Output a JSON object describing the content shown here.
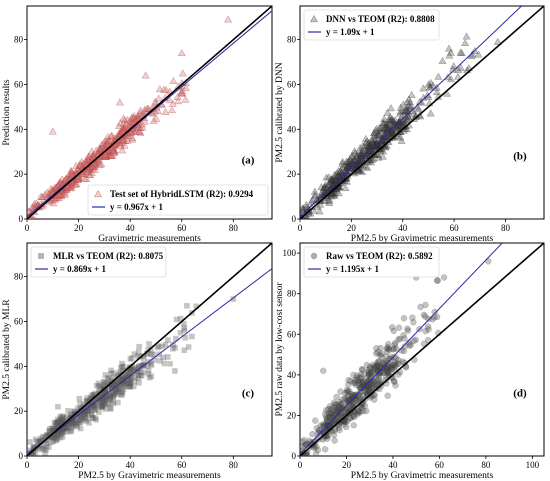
{
  "chart_data": [
    {
      "type": "scatter",
      "panel_label": "(a)",
      "xlabel": "Gravimetric measurements",
      "ylabel": "Prediction results",
      "xlim": [
        0,
        95
      ],
      "ylim": [
        0,
        95
      ],
      "xticks": [
        "0",
        "20",
        "40",
        "60",
        "80"
      ],
      "yticks": [
        "0",
        "20",
        "40",
        "60",
        "80"
      ],
      "legend_position": "bottom-right",
      "marker": "triangle",
      "marker_color": "#c0504d",
      "series": [
        {
          "name": "Test set of HybridLSTM (R2): 0.9294",
          "kind": "points",
          "summary": {
            "slope": 0.967,
            "intercept": 1,
            "x_range": [
              0,
              62
            ],
            "noise": 3.2,
            "count": 520
          }
        },
        {
          "name": "y = 0.967x + 1",
          "kind": "fit",
          "slope": 0.967,
          "intercept": 1,
          "color": "#2a2aa8"
        },
        {
          "name": "",
          "kind": "identity",
          "slope": 1,
          "intercept": 0,
          "color": "#000000"
        }
      ],
      "outliers": [
        [
          78,
          89
        ],
        [
          60,
          74
        ],
        [
          10,
          39
        ],
        [
          46,
          64
        ],
        [
          36,
          52
        ]
      ]
    },
    {
      "type": "scatter",
      "panel_label": "(b)",
      "xlabel": "PM2.5 by Gravimetric measurements",
      "ylabel": "PM2.5 calibrated by DNN",
      "xlim": [
        0,
        95
      ],
      "ylim": [
        0,
        95
      ],
      "xticks": [
        "0",
        "20",
        "40",
        "60",
        "80"
      ],
      "yticks": [
        "0",
        "20",
        "40",
        "60",
        "80"
      ],
      "legend_position": "top-left",
      "marker": "triangle",
      "marker_color": "#555555",
      "series": [
        {
          "name": "DNN vs TEOM (R2): 0.8808",
          "kind": "points",
          "summary": {
            "slope": 1.09,
            "intercept": 1,
            "x_range": [
              0,
              70
            ],
            "noise": 4.5,
            "count": 520
          }
        },
        {
          "name": "y = 1.09x + 1",
          "kind": "fit",
          "slope": 1.09,
          "intercept": 1,
          "color": "#2a2aa8"
        },
        {
          "name": "",
          "kind": "identity",
          "slope": 1,
          "intercept": 0,
          "color": "#000000"
        }
      ],
      "outliers": [
        [
          77,
          79
        ],
        [
          58,
          76
        ],
        [
          63,
          74
        ]
      ]
    },
    {
      "type": "scatter",
      "panel_label": "(c)",
      "xlabel": "PM2.5 by Gravimetric measurements",
      "ylabel": "PM2.5 calibrated by MLR",
      "xlim": [
        0,
        95
      ],
      "ylim": [
        0,
        95
      ],
      "xticks": [
        "0",
        "20",
        "40",
        "60",
        "80"
      ],
      "yticks": [
        "0",
        "20",
        "40",
        "60",
        "80"
      ],
      "legend_position": "top-left",
      "marker": "square",
      "marker_color": "#555555",
      "series": [
        {
          "name": "MLR vs TEOM (R2): 0.8075",
          "kind": "points",
          "summary": {
            "slope": 0.869,
            "intercept": 1,
            "x_range": [
              0,
              66
            ],
            "noise": 4.5,
            "count": 520
          }
        },
        {
          "name": "y = 0.869x + 1",
          "kind": "fit",
          "slope": 0.869,
          "intercept": 1,
          "color": "#2a2aa8"
        },
        {
          "name": "",
          "kind": "identity",
          "slope": 1,
          "intercept": 0,
          "color": "#000000"
        }
      ],
      "outliers": [
        [
          80,
          70
        ],
        [
          62,
          67
        ],
        [
          12,
          22
        ]
      ]
    },
    {
      "type": "scatter",
      "panel_label": "(d)",
      "xlabel": "PM2.5 by Gravimetric measurements",
      "ylabel": "PM2.5 raw data by low-cost sensor",
      "xlim": [
        0,
        105
      ],
      "ylim": [
        0,
        105
      ],
      "xticks": [
        "0",
        "20",
        "40",
        "60",
        "80",
        "100"
      ],
      "yticks": [
        "0",
        "20",
        "40",
        "60",
        "80",
        "100"
      ],
      "legend_position": "top-left",
      "marker": "circle",
      "marker_color": "#555555",
      "series": [
        {
          "name": "Raw vs TEOM (R2): 0.5892",
          "kind": "points",
          "summary": {
            "slope": 1.195,
            "intercept": 1,
            "x_range": [
              0,
              60
            ],
            "noise": 7.5,
            "count": 480
          }
        },
        {
          "name": "y = 1.195x + 1",
          "kind": "fit",
          "slope": 1.195,
          "intercept": 1,
          "color": "#2a2aa8"
        },
        {
          "name": "",
          "kind": "identity",
          "slope": 1,
          "intercept": 0,
          "color": "#000000"
        }
      ],
      "outliers": [
        [
          81,
          96
        ],
        [
          10,
          42
        ],
        [
          62,
          88
        ],
        [
          50,
          88
        ]
      ]
    }
  ]
}
